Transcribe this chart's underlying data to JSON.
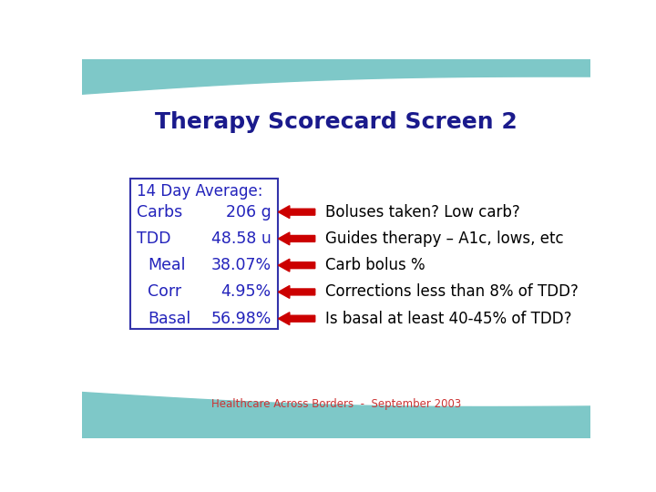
{
  "title": "Therapy Scorecard Screen 2",
  "title_color": "#1a1a8c",
  "title_fontsize": 18,
  "background_color": "#ffffff",
  "teal_color": "#7ec8c8",
  "box_color": "#3333aa",
  "label_color": "#2222bb",
  "arrow_color": "#cc0000",
  "right_text_color": "#000000",
  "footer_color": "#cc3333",
  "box_header": "14 Day Average:",
  "left_labels": [
    "Carbs",
    "TDD",
    "Meal",
    "Corr",
    "Basal"
  ],
  "left_values": [
    "206 g",
    "48.58 u",
    "38.07%",
    "4.95%",
    "56.98%"
  ],
  "label_indent": [
    0,
    0,
    15,
    15,
    15
  ],
  "right_texts": [
    "Boluses taken? Low carb?",
    "Guides therapy – A1c, lows, etc",
    "Carb bolus %",
    "Corrections less than 8% of TDD?",
    "Is basal at least 40-45% of TDD?"
  ],
  "footer": "Healthcare Across Borders  -  September 2003"
}
